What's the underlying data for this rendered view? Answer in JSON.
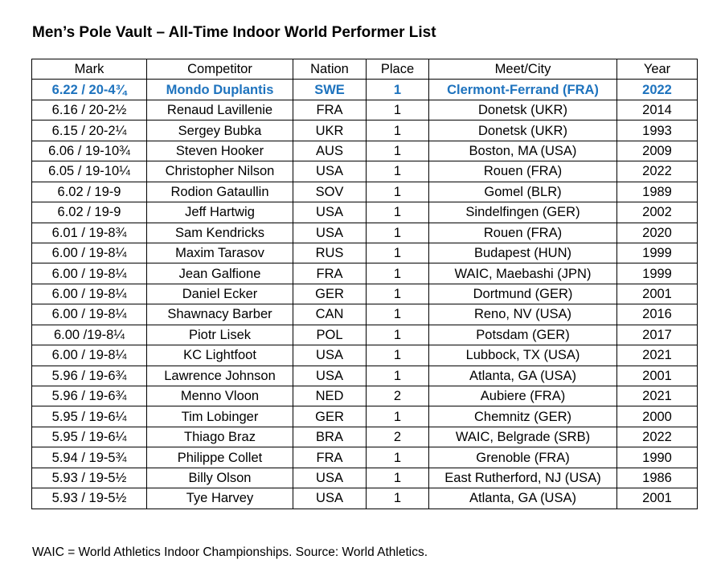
{
  "title": "Men’s Pole Vault – All-Time Indoor World Performer List",
  "columns": [
    "Mark",
    "Competitor",
    "Nation",
    "Place",
    "Meet/City",
    "Year"
  ],
  "rows": [
    [
      "6.22 / 20-4¾",
      "Mondo Duplantis",
      "SWE",
      "1",
      "Clermont-Ferrand (FRA)",
      "2022"
    ],
    [
      "6.16 / 20-2½",
      "Renaud Lavillenie",
      "FRA",
      "1",
      "Donetsk (UKR)",
      "2014"
    ],
    [
      "6.15 / 20-2¼",
      "Sergey Bubka",
      "UKR",
      "1",
      "Donetsk (UKR)",
      "1993"
    ],
    [
      "6.06 / 19-10¾",
      "Steven Hooker",
      "AUS",
      "1",
      "Boston, MA (USA)",
      "2009"
    ],
    [
      "6.05 / 19-10¼",
      "Christopher Nilson",
      "USA",
      "1",
      "Rouen (FRA)",
      "2022"
    ],
    [
      "6.02 / 19-9",
      "Rodion Gataullin",
      "SOV",
      "1",
      "Gomel (BLR)",
      "1989"
    ],
    [
      "6.02 / 19-9",
      "Jeff Hartwig",
      "USA",
      "1",
      "Sindelfingen (GER)",
      "2002"
    ],
    [
      "6.01 / 19-8¾",
      "Sam Kendricks",
      "USA",
      "1",
      "Rouen (FRA)",
      "2020"
    ],
    [
      "6.00 / 19-8¼",
      "Maxim Tarasov",
      "RUS",
      "1",
      "Budapest (HUN)",
      "1999"
    ],
    [
      "6.00 / 19-8¼",
      "Jean Galfione",
      "FRA",
      "1",
      "WAIC, Maebashi (JPN)",
      "1999"
    ],
    [
      "6.00 / 19-8¼",
      "Daniel Ecker",
      "GER",
      "1",
      "Dortmund (GER)",
      "2001"
    ],
    [
      "6.00 / 19-8¼",
      "Shawnacy Barber",
      "CAN",
      "1",
      "Reno, NV (USA)",
      "2016"
    ],
    [
      "6.00 /19-8¼",
      "Piotr Lisek",
      "POL",
      "1",
      "Potsdam (GER)",
      "2017"
    ],
    [
      "6.00 / 19-8¼",
      "KC Lightfoot",
      "USA",
      "1",
      "Lubbock, TX (USA)",
      "2021"
    ],
    [
      "5.96 / 19-6¾",
      "Lawrence Johnson",
      "USA",
      "1",
      "Atlanta, GA (USA)",
      "2001"
    ],
    [
      "5.96 / 19-6¾",
      "Menno Vloon",
      "NED",
      "2",
      "Aubiere (FRA)",
      "2021"
    ],
    [
      "5.95 / 19-6¼",
      "Tim Lobinger",
      "GER",
      "1",
      "Chemnitz (GER)",
      "2000"
    ],
    [
      "5.95 / 19-6¼",
      "Thiago Braz",
      "BRA",
      "2",
      "WAIC, Belgrade (SRB)",
      "2022"
    ],
    [
      "5.94 / 19-5¾",
      "Philippe Collet",
      "FRA",
      "1",
      "Grenoble (FRA)",
      "1990"
    ],
    [
      "5.93 / 19-5½",
      "Billy Olson",
      "USA",
      "1",
      "East Rutherford, NJ (USA)",
      "1986"
    ],
    [
      "5.93 / 19-5½",
      "Tye Harvey",
      "USA",
      "1",
      "Atlanta, GA (USA)",
      "2001"
    ]
  ],
  "highlight_color": "#1e73be",
  "footnote": "WAIC = World Athletics Indoor Championships. Source: World Athletics."
}
